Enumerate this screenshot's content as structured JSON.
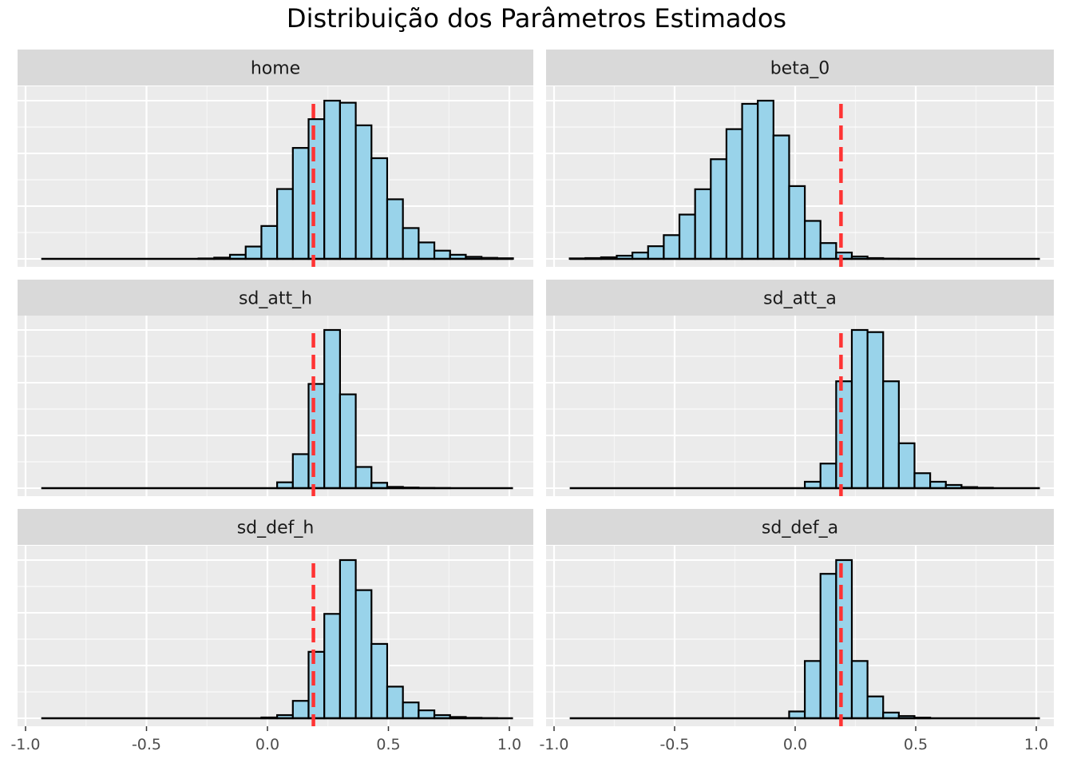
{
  "chart_data": {
    "type": "bar",
    "title": "Distribuição dos Parâmetros Estimados",
    "xlabel": "",
    "ylabel": "",
    "xlim": [
      -1.05,
      1.1
    ],
    "x_ticks": [
      -1.0,
      -0.5,
      0.0,
      0.5,
      1.0
    ],
    "x_tick_labels": [
      "-1.0",
      "-0.5",
      "0.0",
      "0.5",
      "1.0"
    ],
    "grid": true,
    "reference_line": {
      "x": 0.19,
      "color": "#ff3333",
      "style": "dashed"
    },
    "bar_fill": "#99d3ea",
    "bar_stroke": "#000000",
    "panel_background": "#ebebeb",
    "strip_background": "#d9d9d9",
    "bin_width": 0.065,
    "bin_start": -0.935,
    "panels": [
      {
        "name": "home",
        "values": [
          0,
          0,
          0,
          0,
          0,
          0,
          0,
          0,
          0,
          0,
          0.2,
          0.6,
          2,
          6,
          16,
          34,
          54,
          68,
          77,
          76,
          65,
          49,
          29,
          15,
          8,
          4,
          2,
          1,
          0.5,
          0.3
        ]
      },
      {
        "name": "beta_0",
        "values": [
          0.3,
          0.5,
          1,
          2,
          4,
          8,
          15,
          28,
          44,
          63,
          82,
          98,
          100,
          78,
          46,
          24,
          10,
          4,
          1.5,
          0.5,
          0.2,
          0.1,
          0,
          0,
          0,
          0,
          0,
          0,
          0,
          0
        ]
      },
      {
        "name": "sd_att_h",
        "values": [
          0,
          0,
          0,
          0,
          0,
          0,
          0,
          0,
          0,
          0,
          0,
          0,
          0,
          0,
          0,
          3.7,
          21.5,
          65.9,
          100,
          59.3,
          13.4,
          3.4,
          0.8,
          0.4,
          0.2,
          0.1,
          0,
          0,
          0,
          0
        ]
      },
      {
        "name": "sd_att_a",
        "values": [
          0,
          0,
          0,
          0,
          0,
          0,
          0,
          0,
          0,
          0,
          0,
          0,
          0,
          0,
          0,
          3,
          11.5,
          50,
          74,
          73,
          50,
          21,
          7,
          3,
          1.5,
          0.5,
          0.2,
          0,
          0,
          0
        ]
      },
      {
        "name": "sd_def_h",
        "values": [
          0,
          0,
          0,
          0,
          0,
          0,
          0,
          0,
          0,
          0,
          0,
          0,
          0,
          0,
          0.5,
          2,
          11,
          42,
          66,
          100,
          81,
          47,
          20,
          10,
          5,
          2,
          0.8,
          0.3,
          0.1,
          0
        ]
      },
      {
        "name": "sd_def_a",
        "values": [
          0,
          0,
          0,
          0,
          0,
          0,
          0,
          0,
          0,
          0,
          0,
          0,
          0,
          0,
          4.3,
          36.2,
          91.3,
          100,
          36.2,
          13.8,
          3.6,
          1.4,
          0.4,
          0,
          0,
          0,
          0,
          0,
          0,
          0
        ]
      }
    ]
  }
}
